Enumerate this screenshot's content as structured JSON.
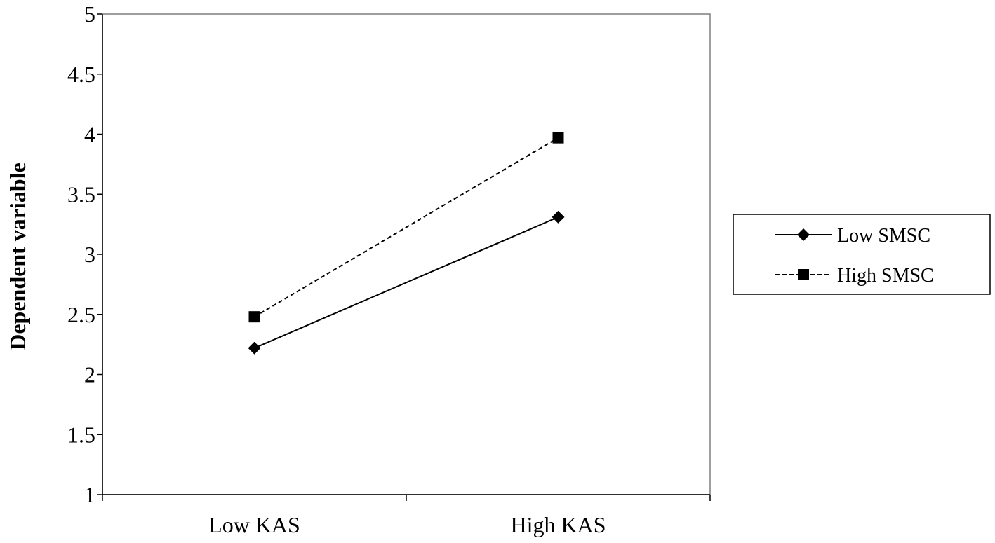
{
  "chart_data": {
    "type": "line",
    "categories": [
      "Low KAS",
      "High KAS"
    ],
    "ylabel": "Dependent variable",
    "xlabel": "",
    "ylim": [
      1,
      5
    ],
    "yticks": [
      1,
      1.5,
      2,
      2.5,
      3,
      3.5,
      4,
      4.5,
      5
    ],
    "grid": false,
    "legend_position": "right",
    "series": [
      {
        "name": "Low SMSC",
        "values": [
          2.22,
          3.31
        ],
        "marker": "diamond",
        "line_style": "solid",
        "color": "#000000"
      },
      {
        "name": "High SMSC",
        "values": [
          2.48,
          3.97
        ],
        "marker": "square",
        "line_style": "dashed",
        "color": "#000000"
      }
    ]
  }
}
